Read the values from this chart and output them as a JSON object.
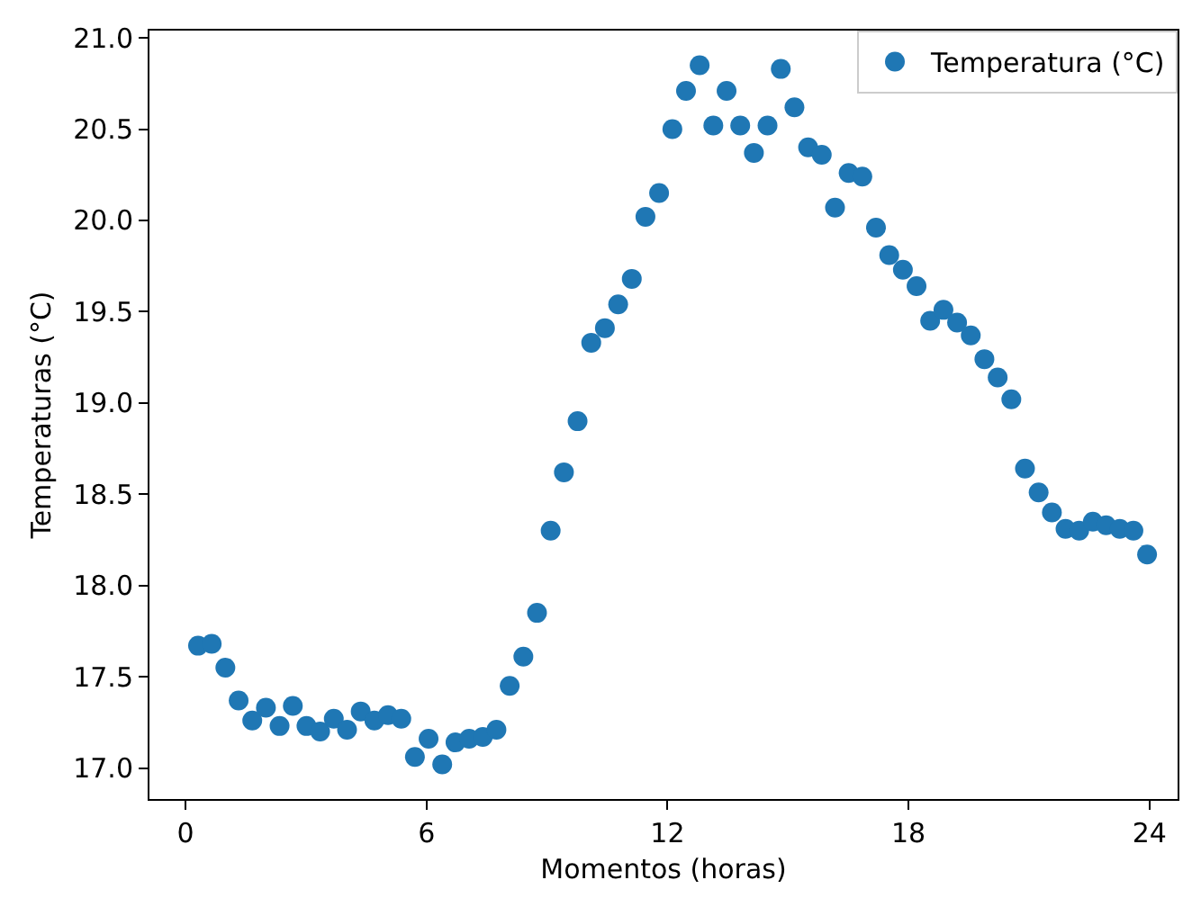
{
  "chart_data": {
    "type": "scatter",
    "xlabel": "Momentos (horas)",
    "ylabel": "Temperaturas (°C)",
    "x": [
      0.31,
      0.65,
      0.99,
      1.32,
      1.66,
      2.0,
      2.34,
      2.67,
      3.01,
      3.35,
      3.69,
      4.02,
      4.36,
      4.7,
      5.04,
      5.37,
      5.71,
      6.05,
      6.39,
      6.72,
      7.06,
      7.4,
      7.74,
      8.07,
      8.41,
      8.75,
      9.09,
      9.42,
      9.76,
      10.1,
      10.44,
      10.77,
      11.11,
      11.45,
      11.79,
      12.12,
      12.46,
      12.8,
      13.14,
      13.47,
      13.81,
      14.15,
      14.49,
      14.82,
      15.16,
      15.5,
      15.84,
      16.17,
      16.51,
      16.85,
      17.19,
      17.52,
      17.86,
      18.2,
      18.54,
      18.87,
      19.21,
      19.55,
      19.89,
      20.22,
      20.56,
      20.9,
      21.24,
      21.57,
      21.91,
      22.25,
      22.59,
      22.92,
      23.26,
      23.6,
      23.94
    ],
    "series": [
      {
        "name": "Temperatura (°C)",
        "color": "#1f77b4",
        "values": [
          17.67,
          17.68,
          17.55,
          17.37,
          17.26,
          17.33,
          17.23,
          17.34,
          17.23,
          17.2,
          17.27,
          17.21,
          17.31,
          17.26,
          17.29,
          17.27,
          17.06,
          17.16,
          17.02,
          17.14,
          17.16,
          17.17,
          17.21,
          17.45,
          17.61,
          17.85,
          18.3,
          18.62,
          18.9,
          19.33,
          19.41,
          19.54,
          19.68,
          20.02,
          20.15,
          20.5,
          20.71,
          20.85,
          20.52,
          20.71,
          20.52,
          20.37,
          20.52,
          20.83,
          20.62,
          20.4,
          20.36,
          20.07,
          20.26,
          20.24,
          19.96,
          19.81,
          19.73,
          19.64,
          19.45,
          19.51,
          19.44,
          19.37,
          19.24,
          19.14,
          19.02,
          18.64,
          18.51,
          18.4,
          18.31,
          18.3,
          18.35,
          18.33,
          18.31,
          18.3,
          18.17
        ]
      }
    ],
    "xlim": [
      -0.9,
      24.7
    ],
    "xticks": [
      0,
      6,
      12,
      18,
      24
    ],
    "ylim": [
      16.83,
      21.04
    ],
    "yticks": [
      {
        "value": 17.0,
        "label": "17.0"
      },
      {
        "value": 17.5,
        "label": "17.5"
      },
      {
        "value": 18.0,
        "label": "18.0"
      },
      {
        "value": 18.5,
        "label": "18.5"
      },
      {
        "value": 19.0,
        "label": "19.0"
      },
      {
        "value": 19.5,
        "label": "19.5"
      },
      {
        "value": 20.0,
        "label": "20.0"
      },
      {
        "value": 20.5,
        "label": "20.5"
      },
      {
        "value": 21.0,
        "label": "21.0"
      }
    ],
    "legend": "top right",
    "marker": "circle"
  }
}
